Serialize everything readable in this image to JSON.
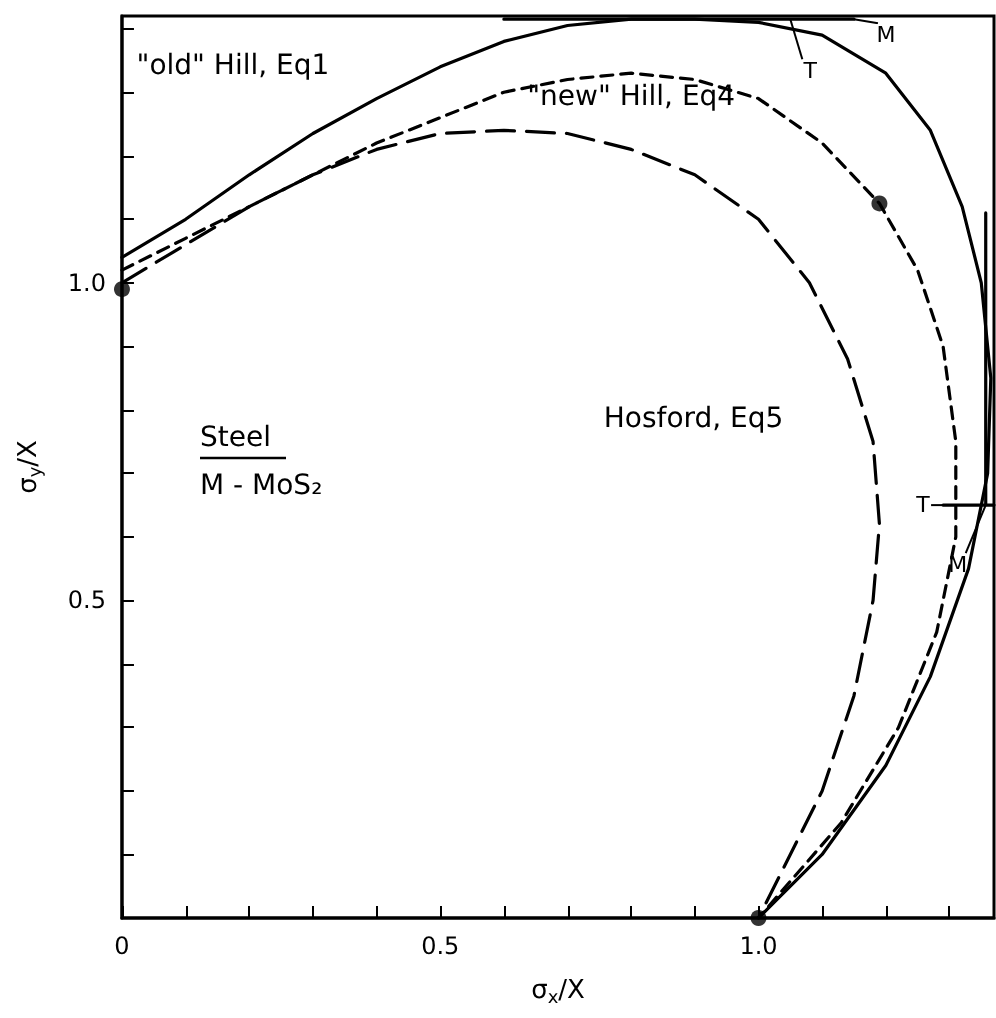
{
  "chart_data": {
    "type": "line",
    "xlabel": "σ$_{x}$/X",
    "ylabel": "σ$_{y}$/X",
    "xlim": [
      0,
      1.37
    ],
    "ylim": [
      0,
      1.42
    ],
    "xticks": [
      0,
      {
        "value": 0.1,
        "label": null
      },
      {
        "value": 0.2,
        "label": null
      },
      {
        "value": 0.3,
        "label": null
      },
      {
        "value": 0.4,
        "label": null
      },
      0.5,
      {
        "value": 0.6,
        "label": null
      },
      {
        "value": 0.7,
        "label": null
      },
      {
        "value": 0.8,
        "label": null
      },
      {
        "value": 0.9,
        "label": null
      },
      {
        "value": 1,
        "label": "1.0"
      },
      {
        "value": 1.1,
        "label": null
      },
      {
        "value": 1.2,
        "label": null
      },
      {
        "value": 1.3,
        "label": null
      }
    ],
    "yticks": [
      {
        "value": 0.1,
        "label": null
      },
      {
        "value": 0.2,
        "label": null
      },
      {
        "value": 0.3,
        "label": null
      },
      {
        "value": 0.4,
        "label": null
      },
      0.5,
      {
        "value": 0.6,
        "label": null
      },
      {
        "value": 0.7,
        "label": null
      },
      {
        "value": 0.8,
        "label": null
      },
      {
        "value": 0.9,
        "label": null
      },
      {
        "value": 1,
        "label": "1.0"
      },
      {
        "value": 1.1,
        "label": null
      },
      {
        "value": 1.2,
        "label": null
      },
      {
        "value": 1.3,
        "label": null
      },
      {
        "value": 1.4,
        "label": null
      }
    ],
    "grid": false,
    "legend": false,
    "series": [
      {
        "name": "\"old\" Hill, Eq1",
        "color": "#000000",
        "line_style": "solid",
        "x": [
          0,
          0.1,
          0.2,
          0.3,
          0.4,
          0.5,
          0.6,
          0.7,
          0.8,
          0.9,
          1.0,
          1.1,
          1.2,
          1.27,
          1.32,
          1.35,
          1.365,
          1.36,
          1.33,
          1.27,
          1.2,
          1.1,
          1.0
        ],
        "values": [
          1.04,
          1.1,
          1.17,
          1.235,
          1.29,
          1.34,
          1.38,
          1.405,
          1.415,
          1.415,
          1.41,
          1.39,
          1.33,
          1.24,
          1.12,
          1.0,
          0.85,
          0.7,
          0.55,
          0.38,
          0.24,
          0.1,
          0
        ]
      },
      {
        "name": "\"new\" Hill, Eq4",
        "color": "#000000",
        "line_style": "dashed",
        "x": [
          0,
          0.1,
          0.2,
          0.3,
          0.4,
          0.5,
          0.6,
          0.7,
          0.8,
          0.9,
          1.0,
          1.1,
          1.19,
          1.25,
          1.29,
          1.31,
          1.31,
          1.28,
          1.22,
          1.13,
          1.0
        ],
        "values": [
          1.02,
          1.07,
          1.12,
          1.17,
          1.22,
          1.26,
          1.3,
          1.32,
          1.33,
          1.32,
          1.29,
          1.22,
          1.125,
          1.02,
          0.9,
          0.75,
          0.6,
          0.45,
          0.3,
          0.15,
          0
        ]
      },
      {
        "name": "Hosford, Eq5",
        "color": "#000000",
        "line_style": "dashed",
        "x": [
          0,
          0.1,
          0.2,
          0.3,
          0.4,
          0.5,
          0.6,
          0.7,
          0.8,
          0.9,
          1.0,
          1.08,
          1.14,
          1.18,
          1.19,
          1.18,
          1.15,
          1.1,
          1.05,
          1.0
        ],
        "values": [
          1.0,
          1.06,
          1.12,
          1.17,
          1.21,
          1.235,
          1.24,
          1.235,
          1.21,
          1.17,
          1.1,
          1.0,
          0.88,
          0.75,
          0.62,
          0.5,
          0.35,
          0.2,
          0.1,
          0
        ]
      },
      {
        "type": "scatter",
        "color": "#000000",
        "marker": "circle",
        "x": [
          0,
          1.19,
          1.0
        ],
        "values": [
          0.99,
          1.125,
          0
        ]
      },
      {
        "color": "#000000",
        "line_style": "solid",
        "x": [
          0.6,
          1.15,
          null,
          1.357,
          1.357,
          null,
          1.29,
          1.37
        ],
        "values": [
          1.415,
          1.415,
          null,
          1.11,
          0.65,
          null,
          0.65,
          0.65
        ]
      }
    ],
    "annotations": [
      "Steel",
      "M - MoS₂",
      {
        "text": "M",
        "x": 1.15,
        "y": 1.415
      },
      {
        "text": "T",
        "x": 1.05,
        "y": 1.415
      },
      {
        "text": "T",
        "x": 1.29,
        "y": 0.65
      },
      {
        "text": "M",
        "x": 1.357,
        "y": 0.65
      }
    ]
  }
}
